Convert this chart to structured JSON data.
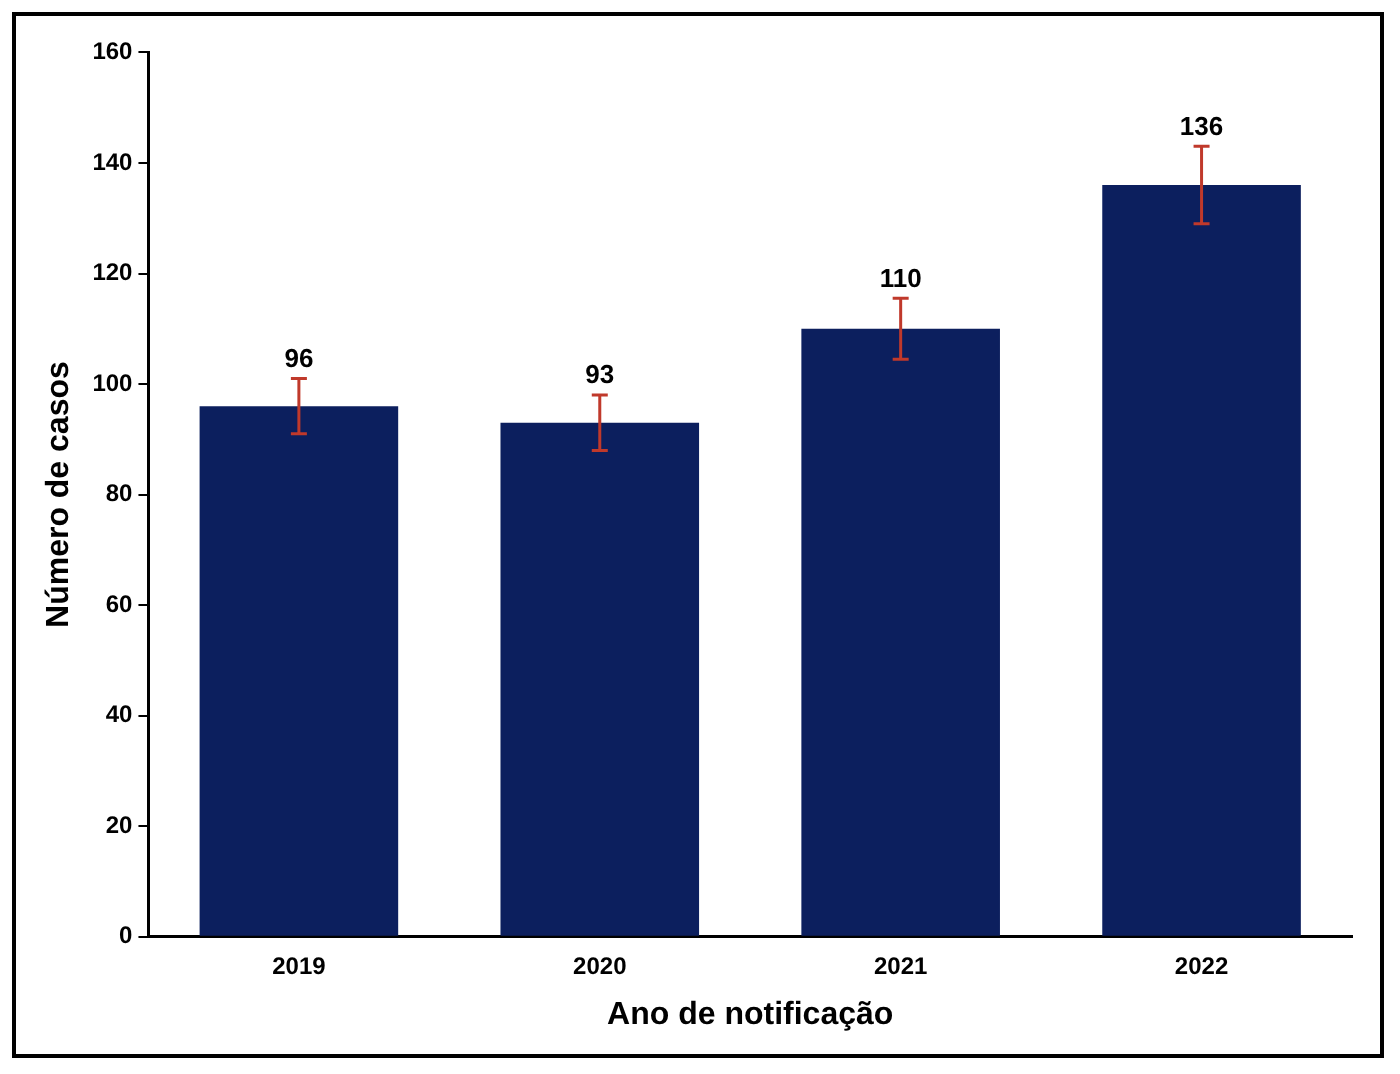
{
  "chart_data": {
    "type": "bar",
    "xlabel": "Ano de notificação",
    "ylabel": "Número de casos",
    "categories": [
      "2019",
      "2020",
      "2021",
      "2022"
    ],
    "values": [
      96,
      93,
      110,
      136
    ],
    "color": "#0c1f5e",
    "errors": [
      5,
      5,
      5.5,
      7
    ],
    "ylim": [
      0,
      160
    ],
    "yticks": [
      0,
      20,
      40,
      60,
      80,
      100,
      120,
      140,
      160
    ],
    "grid": false,
    "legend": false,
    "data_labels": true
  }
}
